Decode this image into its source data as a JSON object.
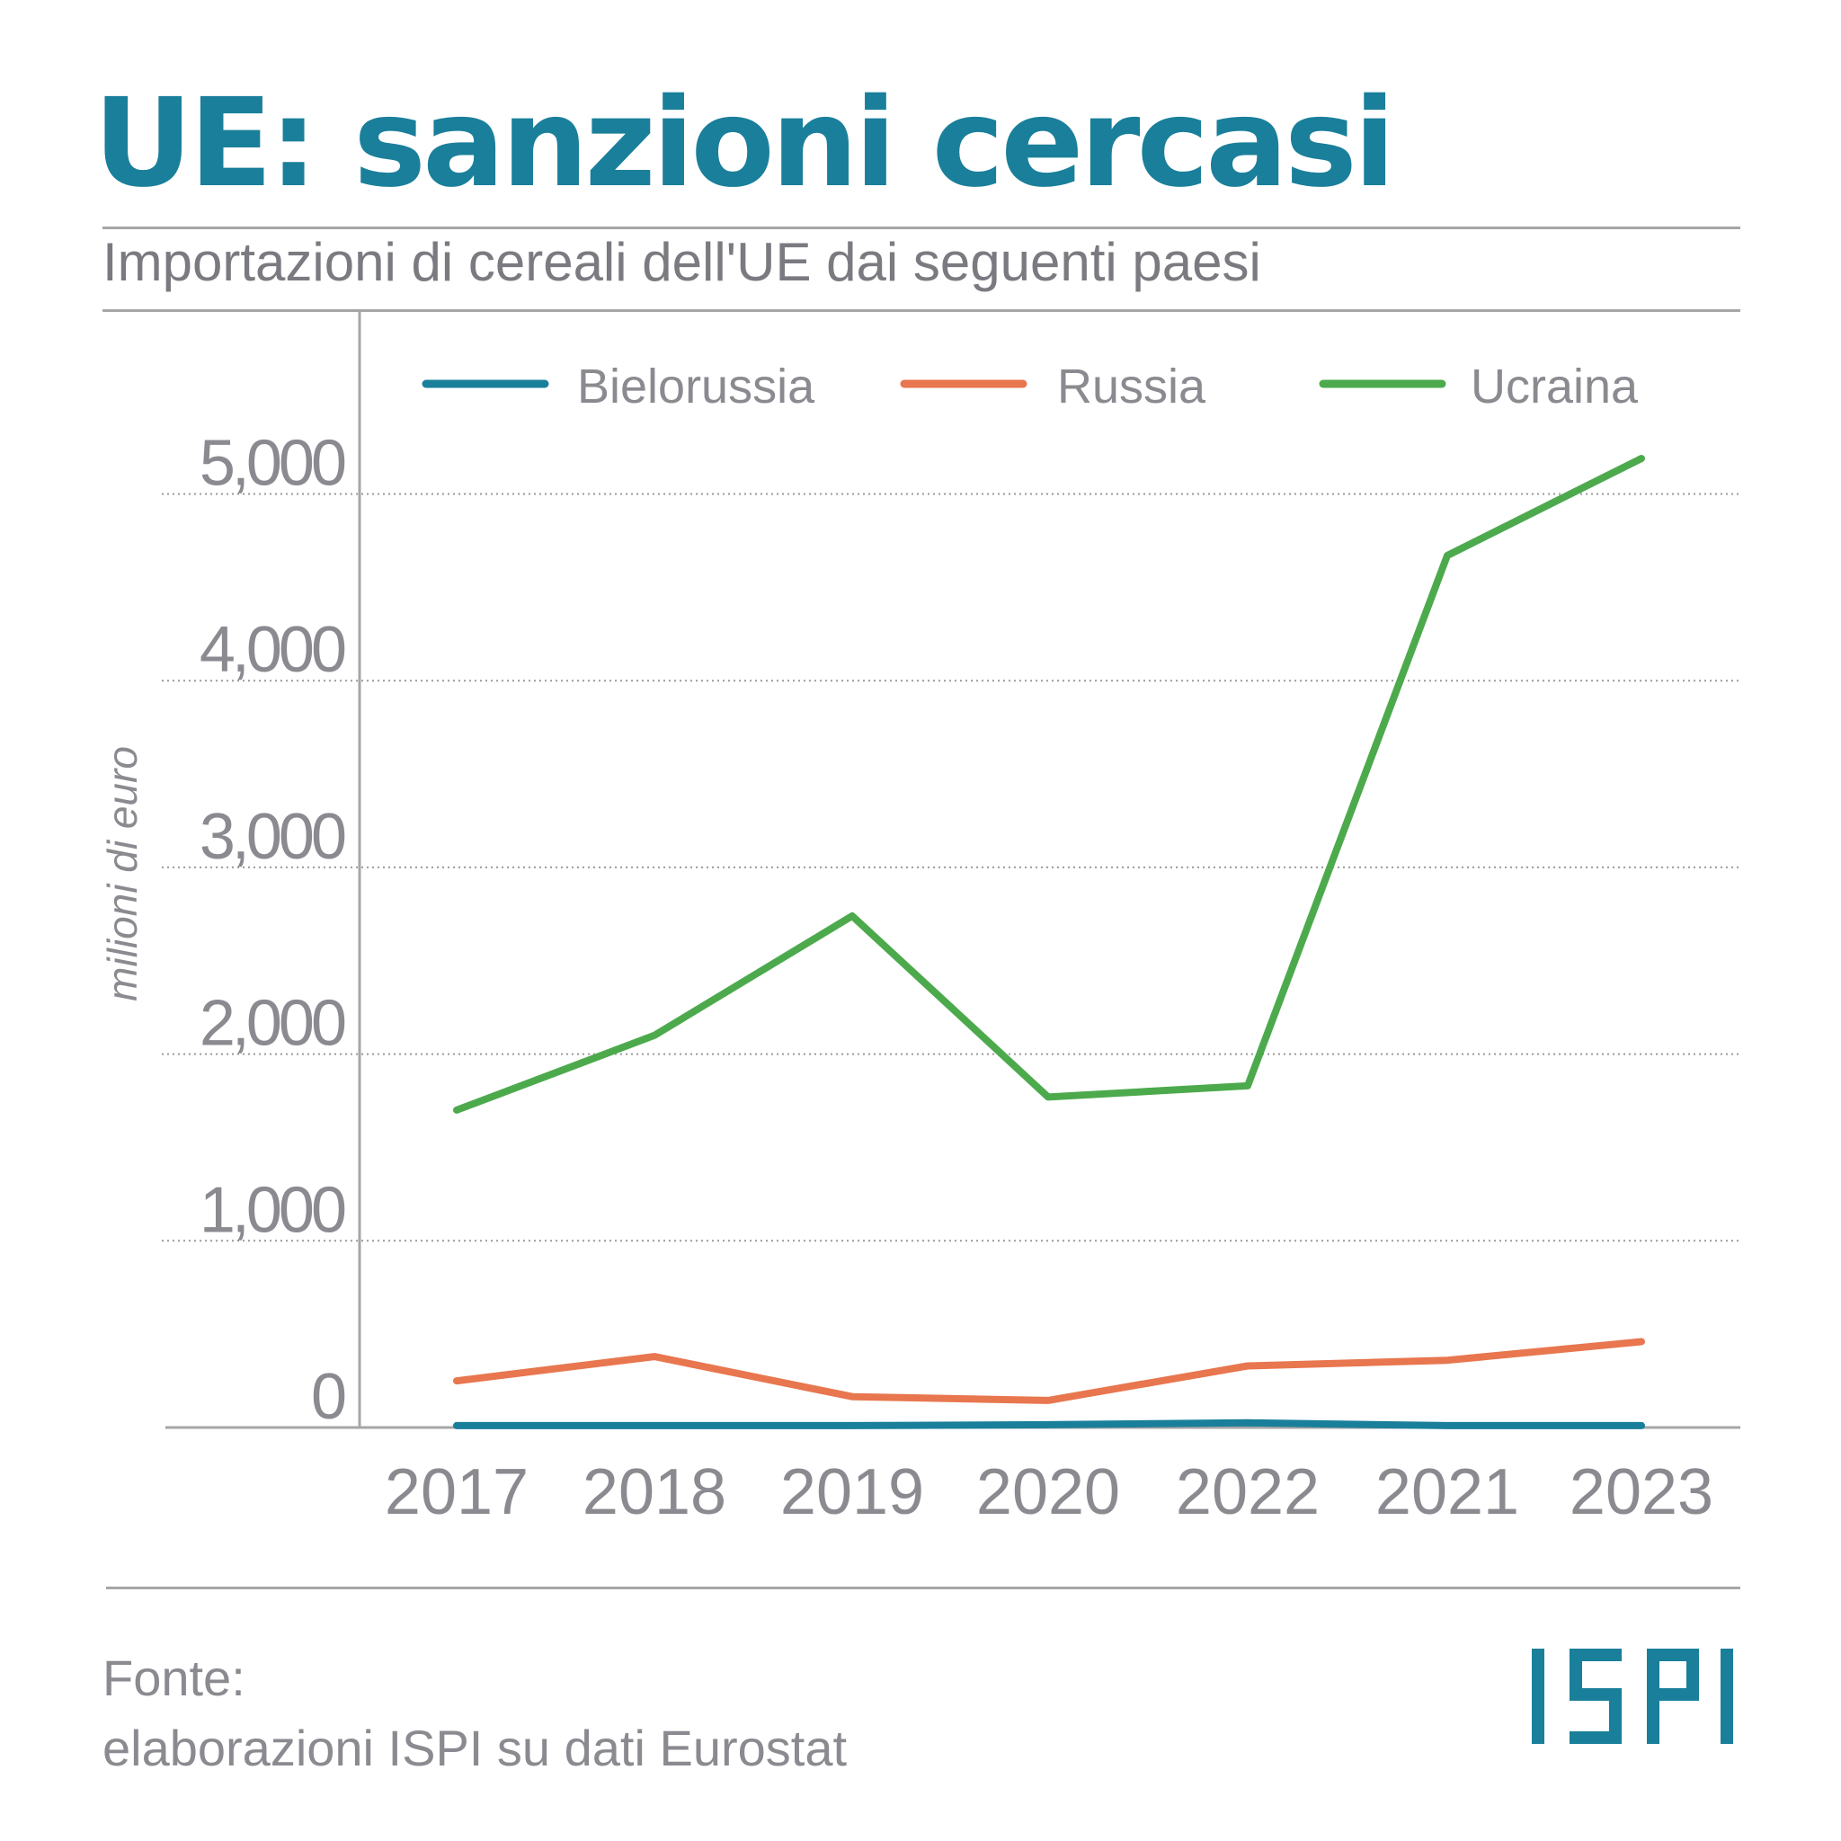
{
  "title": "UE: sanzioni cercasi",
  "subtitle": "Importazioni di cereali dell'UE dai seguenti paesi",
  "source": {
    "line1": "Fonte:",
    "line2": "elaborazioni ISPI su dati Eurostat"
  },
  "logo": {
    "text": "ISPI",
    "color": "#1a7f9a"
  },
  "chart_data": {
    "type": "line",
    "ylabel": "milioni di euro",
    "xlabel": "",
    "categories": [
      "2017",
      "2018",
      "2019",
      "2020",
      "2022",
      "2021",
      "2023"
    ],
    "ylim": [
      0,
      5500
    ],
    "yticks": [
      0,
      1000,
      2000,
      3000,
      4000,
      5000
    ],
    "ytick_labels": [
      "0",
      "1,000",
      "2,000",
      "3,000",
      "4,000",
      "5,000"
    ],
    "grid": "horizontal dotted",
    "legend_position": "top",
    "series": [
      {
        "name": "Bielorussia",
        "color": "#1a7f9a",
        "values": [
          10,
          10,
          10,
          15,
          25,
          10,
          10
        ]
      },
      {
        "name": "Russia",
        "color": "#e8764e",
        "values": [
          250,
          380,
          165,
          145,
          330,
          360,
          460
        ]
      },
      {
        "name": "Ucraina",
        "color": "#4caa4c",
        "values": [
          1700,
          2100,
          2740,
          1770,
          1830,
          4670,
          5190
        ]
      }
    ]
  }
}
